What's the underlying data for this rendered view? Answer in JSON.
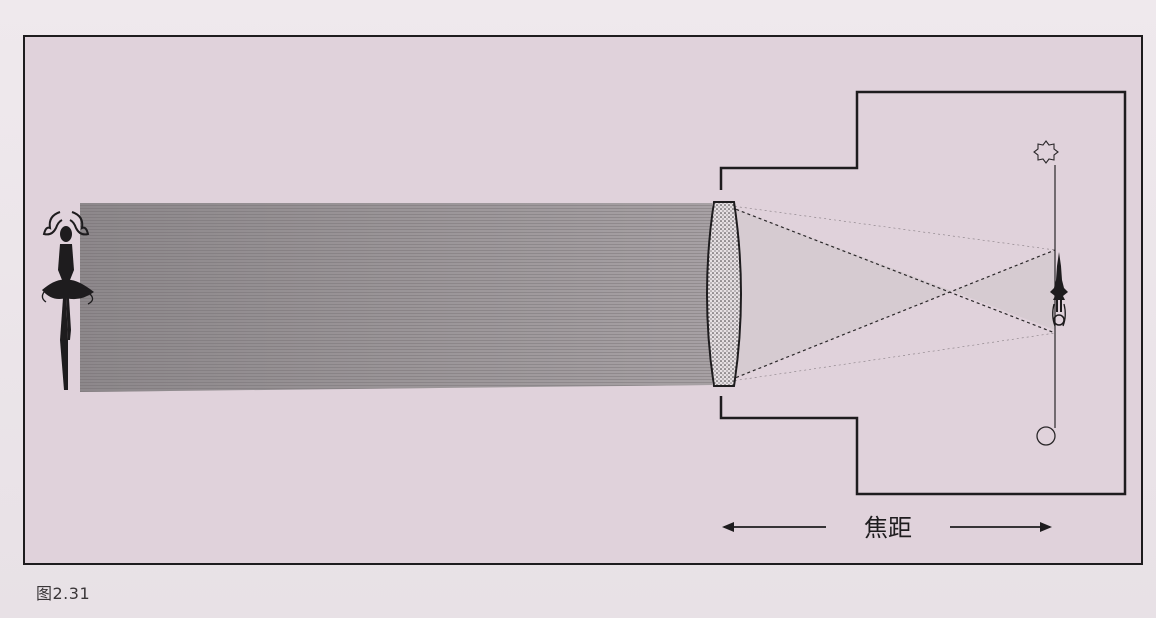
{
  "diagram": {
    "focal_length_label": "焦距",
    "caption": "图2.31",
    "colors": {
      "panel": "#e0d2db",
      "ink": "#1e1c1e",
      "beam": "#9a9597",
      "page": "#ece6ea"
    },
    "elements": {
      "subject": "ballerina-figure",
      "lens": "convex-lens",
      "camera": "camera-body",
      "image": "inverted-ballerina-image"
    }
  }
}
